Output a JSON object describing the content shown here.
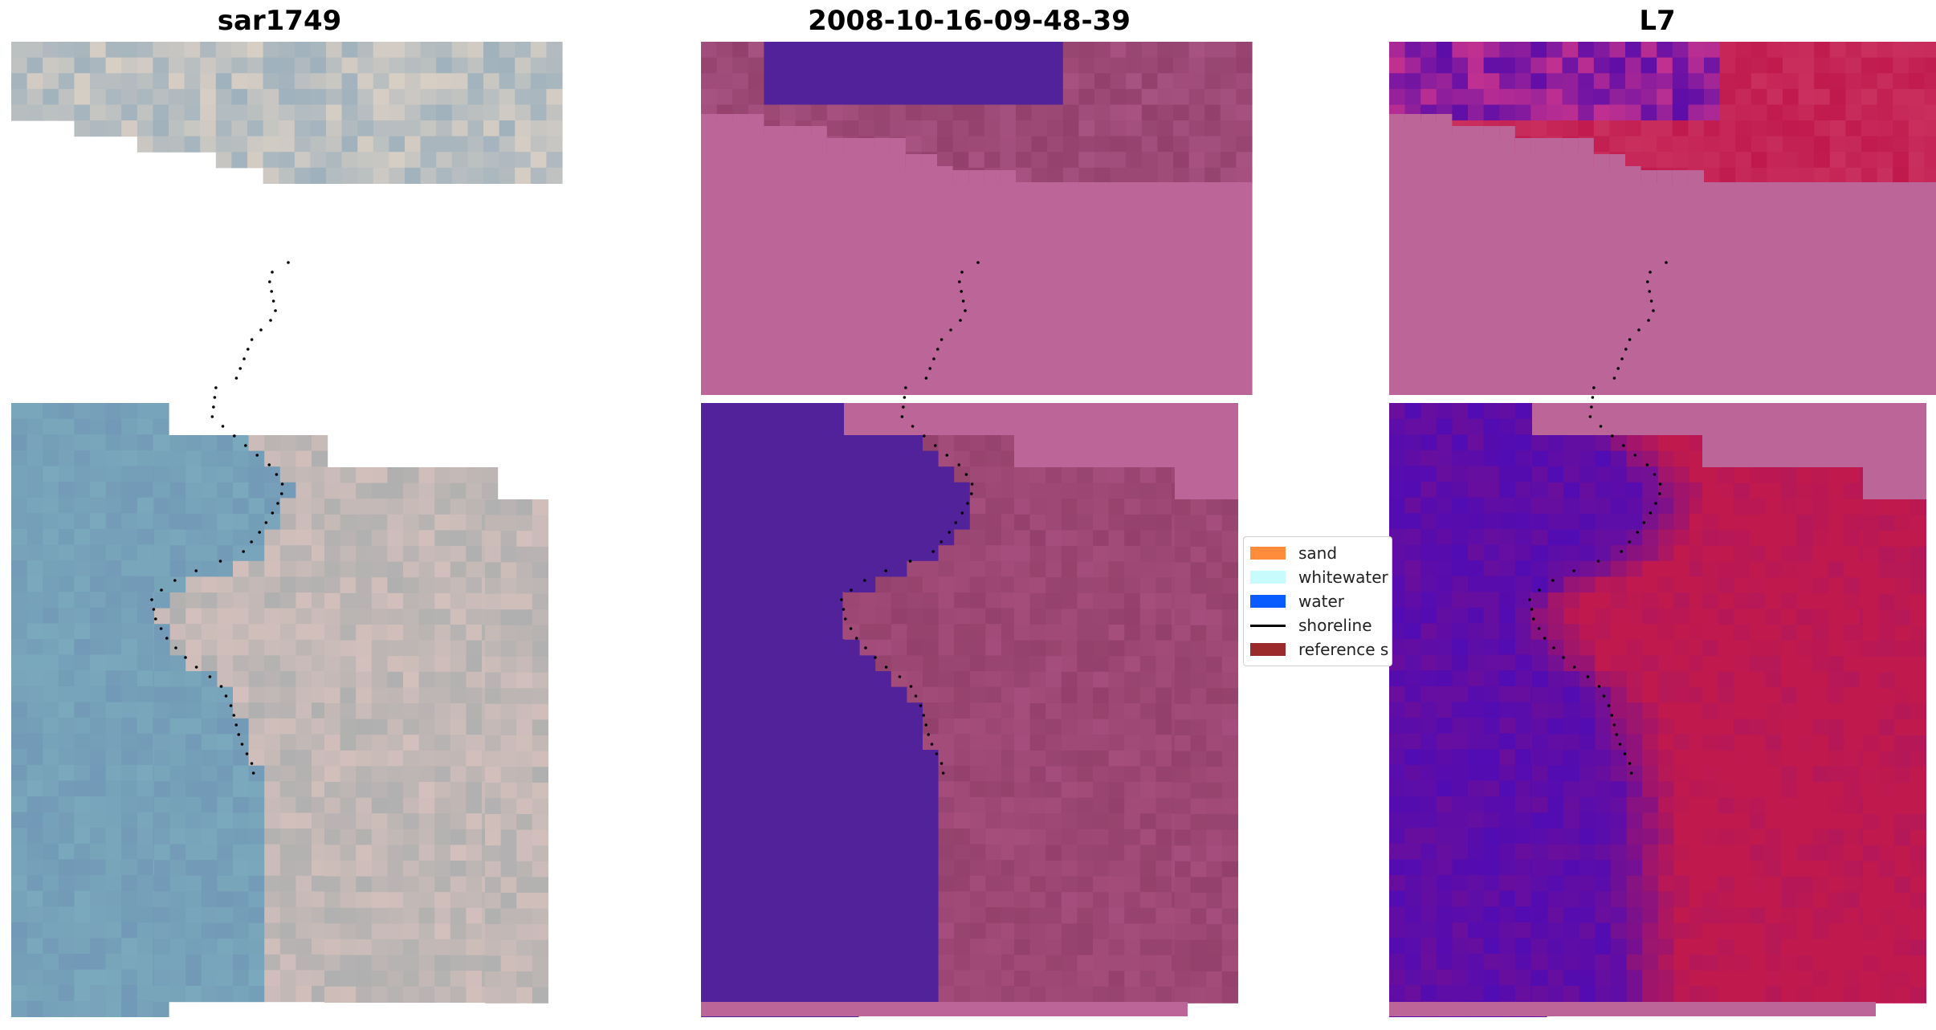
{
  "panels": [
    {
      "title": "sar1749",
      "style": "rgb"
    },
    {
      "title": "2008-10-16-09-48-39",
      "style": "classified"
    },
    {
      "title": "L7",
      "style": "index"
    }
  ],
  "legend": [
    {
      "label": "sand",
      "color": "#ff8c3a",
      "kind": "patch"
    },
    {
      "label": "whitewater",
      "color": "#c8fcfc",
      "kind": "patch"
    },
    {
      "label": "water",
      "color": "#0a5cff",
      "kind": "patch"
    },
    {
      "label": "shoreline",
      "color": "#000000",
      "kind": "line"
    },
    {
      "label": "reference s",
      "color": "#9b2a2a",
      "kind": "patch"
    }
  ],
  "colors": {
    "no_data_pink": "#bc6598",
    "water_class_purple": "#52229a",
    "land_class_mauve": "#93416c",
    "rgb_water_blue": "#7aa8bc",
    "rgb_land_grey": "#b0b0b0",
    "index_low_purple": "#5d0da8",
    "index_high_red": "#c0194e",
    "shoreline_dots": "#000000"
  }
}
